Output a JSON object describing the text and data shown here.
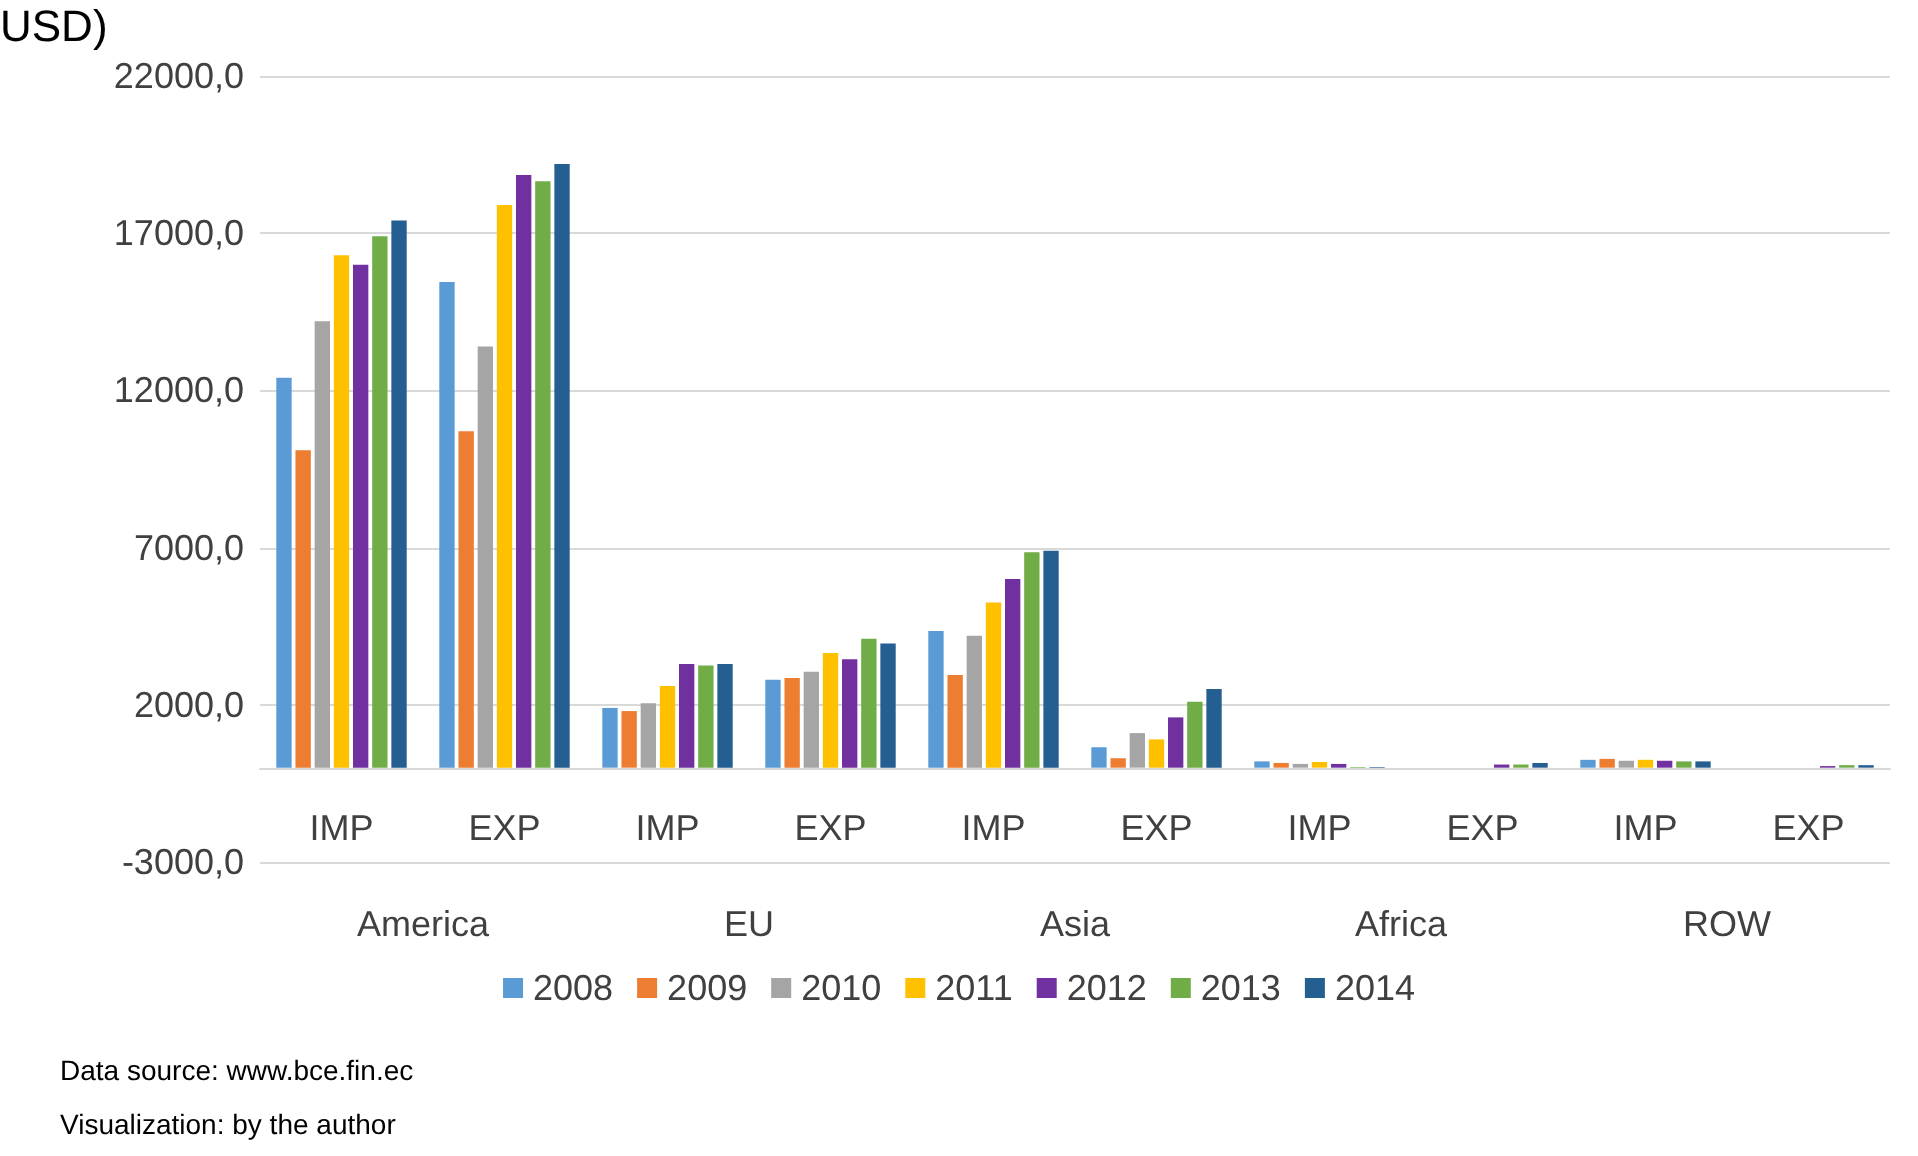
{
  "chart_data": {
    "type": "bar",
    "title": "USD)",
    "categories": [
      "IMP",
      "EXP",
      "IMP",
      "EXP",
      "IMP",
      "EXP",
      "IMP",
      "EXP",
      "IMP",
      "EXP"
    ],
    "series": [
      {
        "name": "2008",
        "color": "#5b9bd5",
        "values": [
          12400,
          15450,
          1900,
          2800,
          4350,
          650,
          200,
          0,
          250,
          0
        ]
      },
      {
        "name": "2009",
        "color": "#ed7d31",
        "values": [
          10100,
          10700,
          1800,
          2850,
          2950,
          300,
          150,
          0,
          280,
          0
        ]
      },
      {
        "name": "2010",
        "color": "#a5a5a5",
        "values": [
          14200,
          13400,
          2050,
          3050,
          4200,
          1100,
          120,
          0,
          220,
          0
        ]
      },
      {
        "name": "2011",
        "color": "#ffc000",
        "values": [
          16300,
          17900,
          2600,
          3650,
          5250,
          900,
          180,
          0,
          250,
          0
        ]
      },
      {
        "name": "2012",
        "color": "#7030a0",
        "values": [
          16000,
          18850,
          3300,
          3450,
          6000,
          1600,
          120,
          100,
          220,
          50
        ]
      },
      {
        "name": "2013",
        "color": "#70ad47",
        "values": [
          16900,
          18650,
          3250,
          4100,
          6850,
          2100,
          20,
          100,
          200,
          80
        ]
      },
      {
        "name": "2014",
        "color": "#255e91",
        "values": [
          17400,
          19200,
          3300,
          3950,
          6900,
          2500,
          20,
          150,
          200,
          80
        ]
      }
    ],
    "ylim": [
      -3000,
      22000
    ],
    "yticks": [
      {
        "value": -3000,
        "label": "-3000,0"
      },
      {
        "value": 2000,
        "label": "2000,0"
      },
      {
        "value": 7000,
        "label": "7000,0"
      },
      {
        "value": 12000,
        "label": "12000,0"
      },
      {
        "value": 17000,
        "label": "17000,0"
      },
      {
        "value": 22000,
        "label": "22000,0"
      }
    ],
    "grid": "y",
    "legend": "bottom",
    "annotations": [
      "America",
      "EU",
      "Asia",
      "Africa",
      "ROW",
      "Data source: www.bce.fin.ec",
      "Visualization: by the author"
    ]
  }
}
